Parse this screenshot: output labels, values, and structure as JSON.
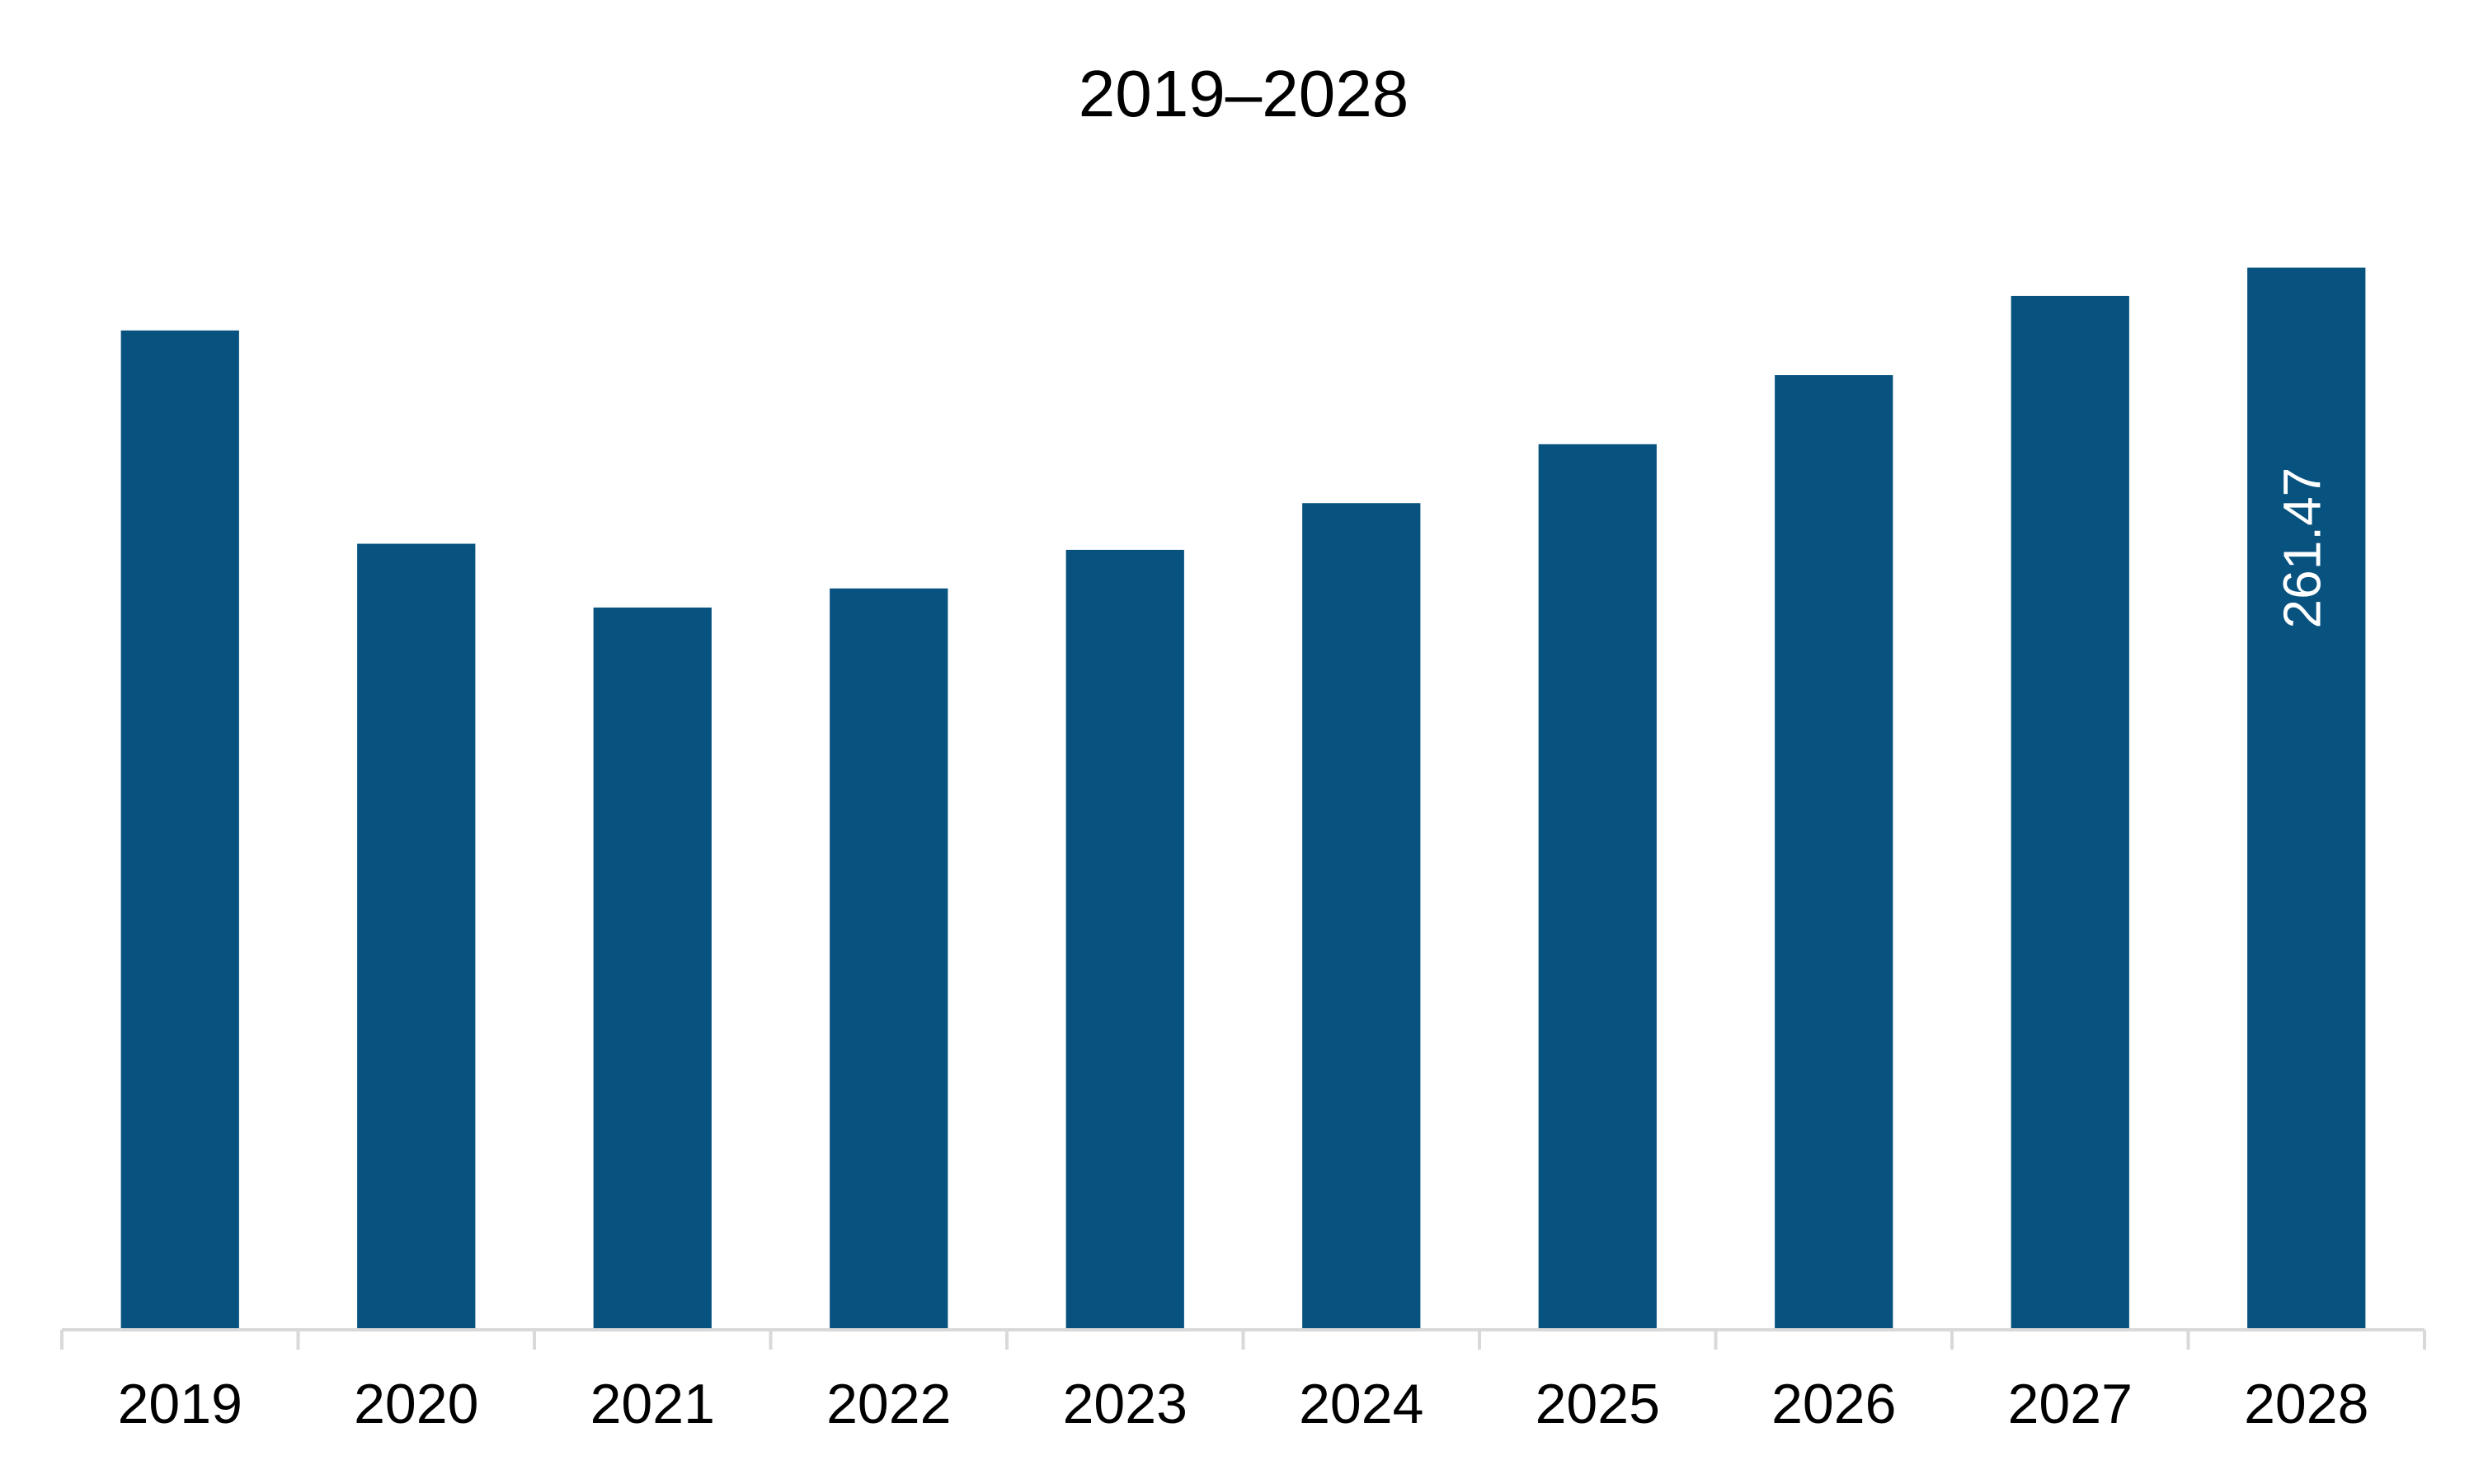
{
  "chart_data": {
    "type": "bar",
    "title": "2019–2028",
    "xlabel": "",
    "ylabel": "",
    "categories": [
      "2019",
      "2020",
      "2021",
      "2022",
      "2023",
      "2024",
      "2025",
      "2026",
      "2027",
      "2028"
    ],
    "values": [
      246.0,
      193.5,
      177.8,
      182.5,
      192.0,
      203.5,
      218.0,
      235.0,
      254.5,
      261.47
    ],
    "ylim": [
      0,
      276
    ],
    "grid": false,
    "legend": "none",
    "data_labels": [
      {
        "index": 9,
        "text": "261.47"
      }
    ],
    "colors": {
      "bar": "#08527f",
      "axis": "#d9d9d9",
      "text": "#000000",
      "data_label": "#ffffff"
    }
  }
}
